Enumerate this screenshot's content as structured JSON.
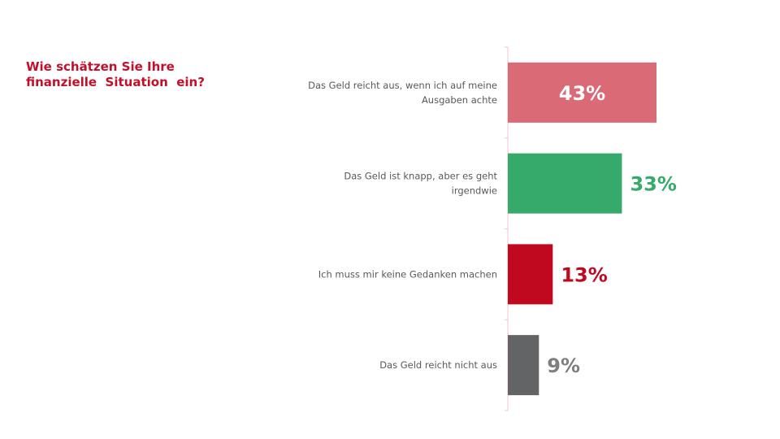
{
  "question": {
    "lines": [
      "Wie schätzen Sie Ihre",
      "finanzielle  Situation  ein?"
    ]
  },
  "colors": {
    "title": "#c0102a",
    "axis": "#f2c4cb",
    "label_text": "#595959"
  },
  "chart_data": {
    "type": "bar",
    "orientation": "horizontal",
    "title": "",
    "xlabel": "",
    "ylabel": "",
    "xlim": [
      0,
      100
    ],
    "grid": false,
    "legend": "none",
    "categories": [
      [
        "Das Geld reicht aus, wenn ich auf meine",
        "Ausgaben achte"
      ],
      [
        "Das Geld ist knapp, aber es geht",
        "irgendwie"
      ],
      [
        "Ich muss mir keine Gedanken machen"
      ],
      [
        "Das Geld reicht nicht aus"
      ]
    ],
    "values": [
      43,
      33,
      13,
      9
    ],
    "value_labels": [
      "43%",
      "33%",
      "13%",
      "9%"
    ],
    "bar_colors": [
      "#d96a76",
      "#35aa6b",
      "#c0091e",
      "#636466"
    ],
    "value_label_colors": [
      "#ffffff",
      "#35aa6b",
      "#c0091e",
      "#7f7f7f"
    ],
    "value_label_inside": [
      true,
      false,
      false,
      false
    ]
  }
}
